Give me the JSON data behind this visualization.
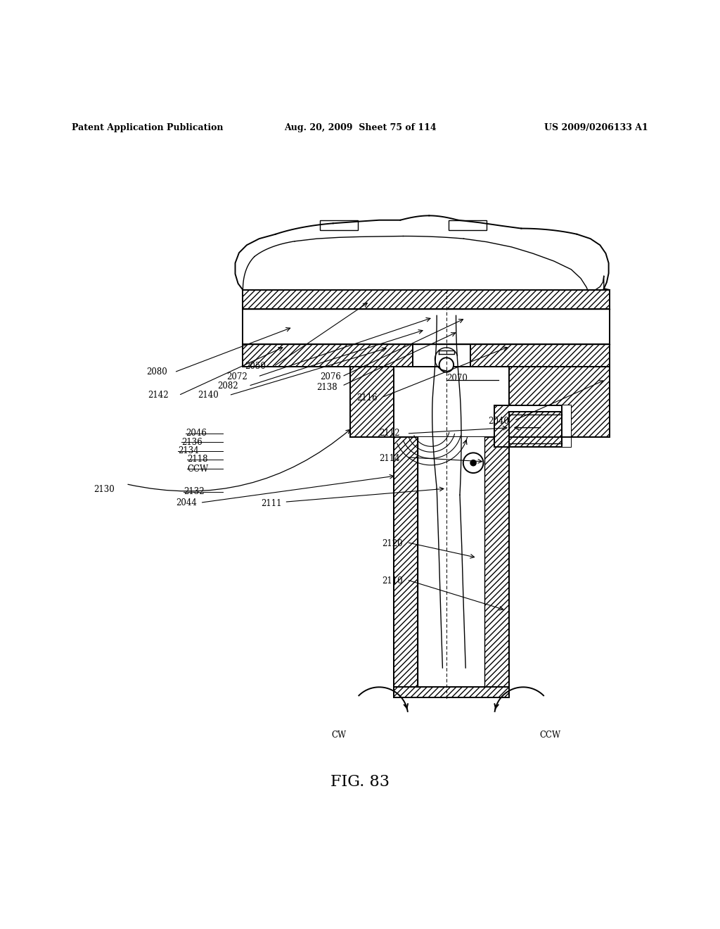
{
  "title": "FIG. 83",
  "header_left": "Patent Application Publication",
  "header_mid": "Aug. 20, 2009  Sheet 75 of 114",
  "header_right": "US 2009/0206133 A1",
  "background_color": "#ffffff",
  "line_color": "#000000",
  "label_fs": 8.5,
  "title_fs": 16
}
